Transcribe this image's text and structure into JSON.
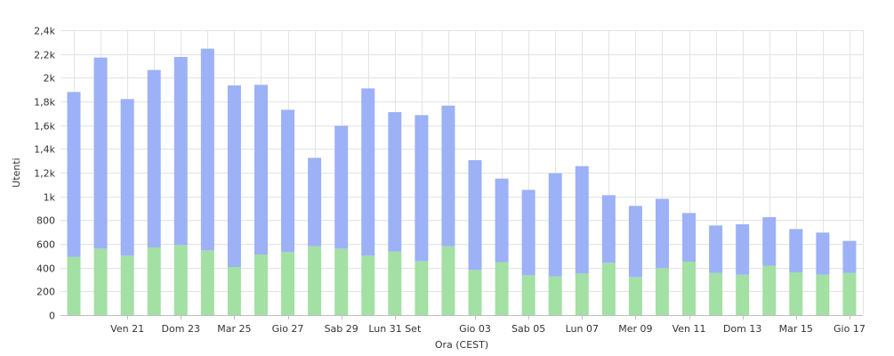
{
  "chart_data": {
    "type": "bar",
    "stacked": true,
    "xlabel": "Ora (CEST)",
    "ylabel": "Utenti",
    "ylim": [
      0,
      2400
    ],
    "yticks": [
      0,
      200,
      400,
      600,
      800,
      1000,
      1200,
      1400,
      1600,
      1800,
      2000,
      2200,
      2400
    ],
    "ytick_labels": [
      "0",
      "200",
      "400",
      "600",
      "800",
      "1k",
      "1,2k",
      "1,4k",
      "1,6k",
      "1,8k",
      "2k",
      "2,2k",
      "2,4k"
    ],
    "x_tick_labels": [
      {
        "index": 2,
        "label": "Ven 21"
      },
      {
        "index": 4,
        "label": "Dom 23"
      },
      {
        "index": 6,
        "label": "Mar 25"
      },
      {
        "index": 8,
        "label": "Gio 27"
      },
      {
        "index": 10,
        "label": "Sab 29"
      },
      {
        "index": 12,
        "label": "Lun 31 Set"
      },
      {
        "index": 15,
        "label": "Gio 03"
      },
      {
        "index": 17,
        "label": "Sab 05"
      },
      {
        "index": 19,
        "label": "Lun 07"
      },
      {
        "index": 21,
        "label": "Mer 09"
      },
      {
        "index": 23,
        "label": "Ven 11"
      },
      {
        "index": 25,
        "label": "Dom 13"
      },
      {
        "index": 27,
        "label": "Mar 15"
      },
      {
        "index": 29,
        "label": "Gio 17"
      }
    ],
    "grid": true,
    "series": [
      {
        "color": "#a3e0a3",
        "values": [
          490,
          560,
          500,
          570,
          590,
          545,
          405,
          510,
          530,
          580,
          560,
          500,
          535,
          455,
          580,
          380,
          445,
          335,
          325,
          350,
          440,
          320,
          395,
          450,
          355,
          340,
          415,
          360,
          340,
          355
        ]
      },
      {
        "color": "#9db1f7",
        "values": [
          1390,
          1610,
          1320,
          1495,
          1585,
          1700,
          1530,
          1430,
          1200,
          745,
          1035,
          1410,
          1175,
          1230,
          1185,
          925,
          705,
          720,
          870,
          905,
          570,
          600,
          585,
          410,
          400,
          425,
          410,
          365,
          355,
          270
        ]
      }
    ]
  }
}
